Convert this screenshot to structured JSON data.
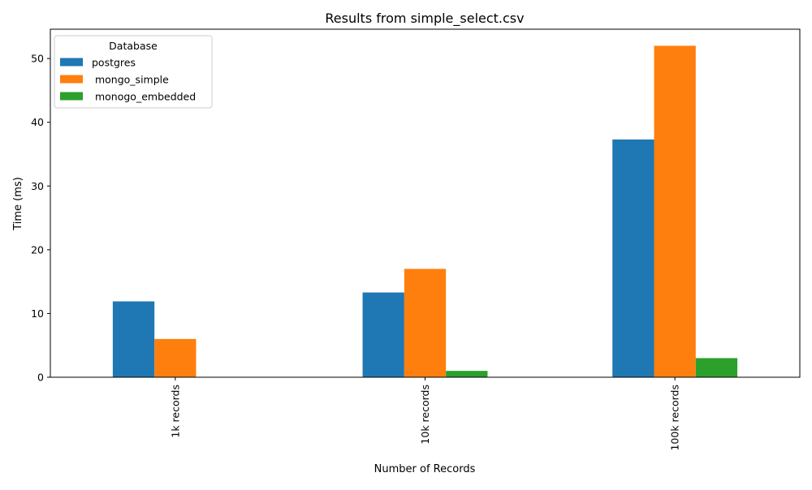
{
  "chart_data": {
    "type": "bar",
    "title": "Results from simple_select.csv",
    "xlabel": "Number of Records",
    "ylabel": "Time (ms)",
    "categories": [
      "1k records",
      "10k records",
      "100k records"
    ],
    "series": [
      {
        "name": "postgres",
        "color": "#1f77b4",
        "values": [
          11.9,
          13.3,
          37.3
        ]
      },
      {
        "name": " mongo_simple",
        "color": "#ff7f0e",
        "values": [
          6.0,
          17.0,
          52.0
        ]
      },
      {
        "name": " monogo_embedded",
        "color": "#2ca02c",
        "values": [
          0.0,
          1.0,
          3.0
        ]
      }
    ],
    "ylim": [
      0,
      54.6
    ],
    "yticks": [
      "0",
      "10",
      "20",
      "30",
      "40",
      "50"
    ],
    "legend": {
      "title": "Database",
      "placement": "top-left"
    },
    "grid": false
  }
}
